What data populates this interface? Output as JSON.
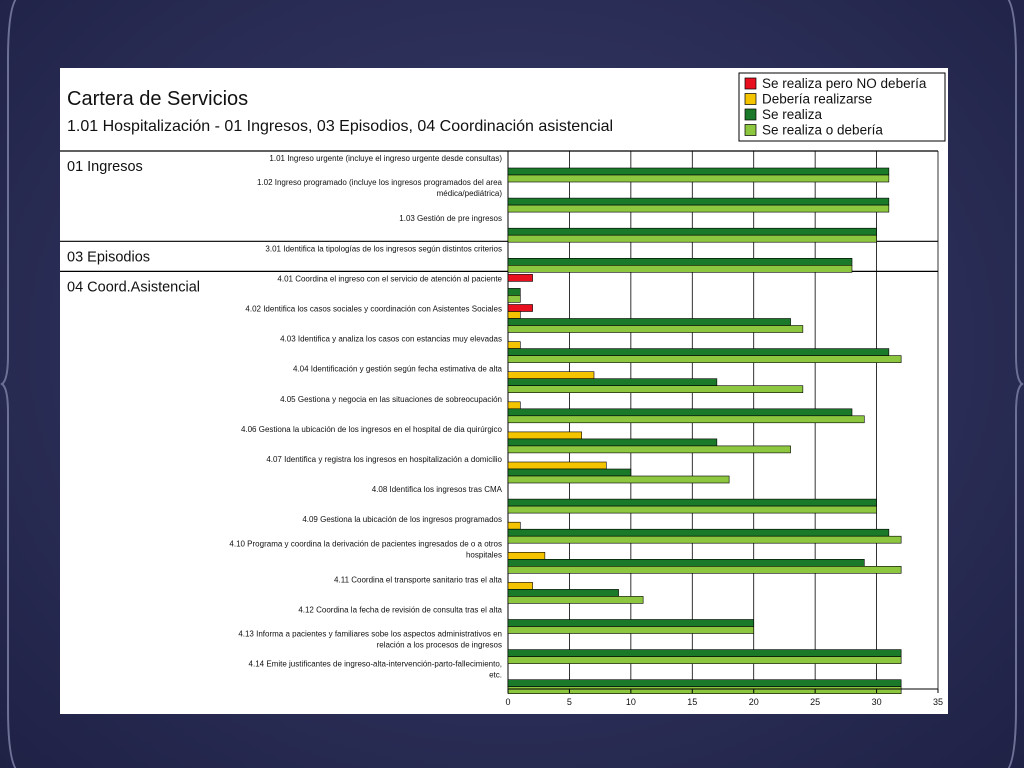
{
  "chart_data": {
    "type": "bar",
    "orientation": "horizontal",
    "title": "Cartera de Servicios",
    "subtitle": "1.01  Hospitalización - 01 Ingresos, 03 Episodios, 04 Coordinación asistencial",
    "xlim": [
      0,
      35
    ],
    "x_ticks": [
      "0",
      "5",
      "10",
      "15",
      "20",
      "25",
      "30",
      "35"
    ],
    "grid": "vertical",
    "legend_position": "top-right",
    "legend": [
      {
        "label": "Se realiza pero NO debería",
        "color": "#e8101e"
      },
      {
        "label": "Debería realizarse",
        "color": "#f5c400"
      },
      {
        "label": "Se realiza",
        "color": "#1b7a2a"
      },
      {
        "label": "Se realiza o debería",
        "color": "#8dc63f"
      }
    ],
    "sections": [
      {
        "label": "01 Ingresos",
        "first_row": 0,
        "row_count": 3
      },
      {
        "label": "03 Episodios",
        "first_row": 3,
        "row_count": 1
      },
      {
        "label": "04 Coord.Asistencial",
        "first_row": 4,
        "row_count": 14
      }
    ],
    "rows": [
      {
        "label": "1.01 Ingreso urgente (incluye el ingreso urgente desde consultas)",
        "values": [
          0,
          0,
          31,
          31
        ]
      },
      {
        "label": "1.02 Ingreso programado (incluye los ingresos programados del area médica/pediátrica)",
        "values": [
          0,
          0,
          31,
          31
        ]
      },
      {
        "label": "1.03 Gestión de pre ingresos",
        "values": [
          0,
          0,
          30,
          30
        ]
      },
      {
        "label": "3.01 Identifica la tipologías de los ingresos según distintos criterios",
        "values": [
          0,
          0,
          28,
          28
        ]
      },
      {
        "label": "4.01 Coordina el ingreso con el servicio de atención al paciente",
        "values": [
          2,
          0,
          1,
          1
        ]
      },
      {
        "label": "4.02 Identifica los casos sociales y coordinación con Asistentes Sociales",
        "values": [
          2,
          1,
          23,
          24
        ]
      },
      {
        "label": "4.03 Identifica y analiza los casos con estancias muy elevadas",
        "values": [
          0,
          1,
          31,
          32
        ]
      },
      {
        "label": "4.04 Identificación y gestión según fecha estimativa de alta",
        "values": [
          0,
          7,
          17,
          24
        ]
      },
      {
        "label": "4.05 Gestiona y negocia en las situaciones de sobreocupación",
        "values": [
          0,
          1,
          28,
          29
        ]
      },
      {
        "label": "4.06 Gestiona la ubicación de los ingresos en el hospital de dia quirúrgico",
        "values": [
          0,
          6,
          17,
          23
        ]
      },
      {
        "label": "4.07 Identifica y registra los ingresos en hospitalización a domicilio",
        "values": [
          0,
          8,
          10,
          18
        ]
      },
      {
        "label": "4.08 Identifica los ingresos tras CMA",
        "values": [
          0,
          0,
          30,
          30
        ]
      },
      {
        "label": "4.09 Gestiona la ubicación de los ingresos programados",
        "values": [
          0,
          1,
          31,
          32
        ]
      },
      {
        "label": "4.10 Programa y coordina la derivación de pacientes ingresados de o a otros hospitales",
        "values": [
          0,
          3,
          29,
          32
        ]
      },
      {
        "label": "4.11 Coordina el transporte sanitario tras el alta",
        "values": [
          0,
          2,
          9,
          11
        ]
      },
      {
        "label": "4.12 Coordina la fecha de revisión de consulta tras el alta",
        "values": [
          0,
          0,
          20,
          20
        ]
      },
      {
        "label": "4.13 Informa a pacientes y familiares sobe los aspectos administrativos en relación a los procesos de ingresos",
        "values": [
          0,
          0,
          32,
          32
        ]
      },
      {
        "label": "4.14 Emite justificantes de ingreso-alta-intervención-parto-fallecimiento, etc.",
        "values": [
          0,
          0,
          32,
          32
        ]
      }
    ]
  }
}
